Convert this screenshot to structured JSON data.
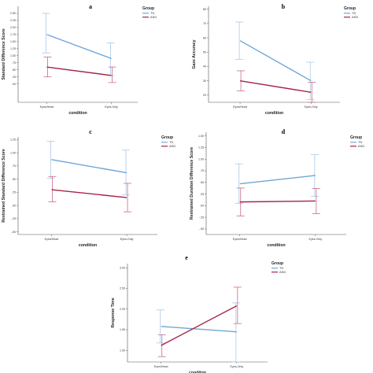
{
  "colors": {
    "td": "#6ea6d8",
    "asd": "#a3244a",
    "td_err": "#a9c9ea",
    "asd_err": "#c96a85",
    "axis": "#555555"
  },
  "chart_data": [
    {
      "panel": "a",
      "type": "line",
      "xlabel": "condition",
      "ylabel": "Standard Difference Score",
      "categories": [
        "Eyes/Head",
        "Eyes-Only"
      ],
      "ylim": [
        -0.65,
        2.75
      ],
      "yticks": [
        ".00",
        ".25",
        ".50",
        ".75",
        "1.00",
        "1.25",
        "1.50",
        "1.75",
        "2.00",
        "2.25",
        "2.50"
      ],
      "yticks_values": [
        0,
        0.25,
        0.5,
        0.75,
        1,
        1.25,
        1.5,
        1.75,
        2,
        2.25,
        2.5
      ],
      "legend": {
        "title": "Group",
        "entries": [
          "TD",
          "ASD"
        ]
      },
      "series": [
        {
          "name": "TD",
          "values": [
            1.75,
            0.9
          ],
          "lower": [
            1.1,
            0.3
          ],
          "upper": [
            2.5,
            1.45
          ]
        },
        {
          "name": "ASD",
          "values": [
            0.6,
            0.3
          ],
          "lower": [
            0.25,
            0.05
          ],
          "upper": [
            0.95,
            0.6
          ]
        }
      ]
    },
    {
      "panel": "b",
      "type": "line",
      "xlabel": "condition",
      "ylabel": "Gaze Accuracy",
      "categories": [
        "Eyes/Head",
        "Eyes-Only"
      ],
      "ylim": [
        15,
        82
      ],
      "yticks": [
        "20",
        "30",
        "40",
        "50",
        "60",
        "70",
        "80"
      ],
      "yticks_values": [
        20,
        30,
        40,
        50,
        60,
        70,
        80
      ],
      "legend": {
        "title": "Group",
        "entries": [
          "TD",
          "ASD"
        ]
      },
      "series": [
        {
          "name": "TD",
          "values": [
            58,
            30
          ],
          "lower": [
            45,
            17
          ],
          "upper": [
            71,
            43
          ]
        },
        {
          "name": "ASD",
          "values": [
            30,
            22
          ],
          "lower": [
            23,
            15
          ],
          "upper": [
            37,
            29
          ]
        }
      ]
    },
    {
      "panel": "c",
      "type": "line",
      "xlabel": "condition",
      "ylabel": "Restrained Standard Difference Score",
      "categories": [
        "Eyes/Head",
        "Eyes-Only"
      ],
      "ylim": [
        -0.55,
        1.3
      ],
      "yticks": [
        "-.50",
        "-.25",
        ".00",
        ".25",
        ".50",
        ".75",
        "1.00",
        "1.25"
      ],
      "yticks_values": [
        -0.5,
        -0.25,
        0,
        0.25,
        0.5,
        0.75,
        1,
        1.25
      ],
      "legend": {
        "title": "Group",
        "entries": [
          "TD",
          "ASD"
        ]
      },
      "series": [
        {
          "name": "TD",
          "values": [
            0.87,
            0.62
          ],
          "lower": [
            0.52,
            0.2
          ],
          "upper": [
            1.22,
            1.05
          ]
        },
        {
          "name": "ASD",
          "values": [
            0.3,
            0.15
          ],
          "lower": [
            0.07,
            -0.12
          ],
          "upper": [
            0.55,
            0.42
          ]
        }
      ]
    },
    {
      "panel": "d",
      "type": "line",
      "xlabel": "condition",
      "ylabel": "Restrained Duration Difference Score",
      "categories": [
        "Eyes/Head",
        "Eyes-Only"
      ],
      "ylim": [
        -0.62,
        1.58
      ],
      "yticks": [
        "-.50",
        "-.25",
        ".00",
        ".25",
        ".50",
        ".75",
        "1.00",
        "1.25",
        "1.50"
      ],
      "yticks_values": [
        -0.5,
        -0.25,
        0,
        0.25,
        0.5,
        0.75,
        1,
        1.25,
        1.5
      ],
      "legend": {
        "title": "Group",
        "entries": [
          "TD",
          "ASD"
        ]
      },
      "series": [
        {
          "name": "TD",
          "values": [
            0.47,
            0.65
          ],
          "lower": [
            0.05,
            0.2
          ],
          "upper": [
            0.9,
            1.1
          ]
        },
        {
          "name": "ASD",
          "values": [
            0.08,
            0.1
          ],
          "lower": [
            -0.22,
            -0.17
          ],
          "upper": [
            0.38,
            0.37
          ]
        }
      ]
    },
    {
      "panel": "e",
      "type": "line",
      "xlabel": "conditon",
      "ylabel": "Response Time",
      "categories": [
        "Eyes/Head",
        "Eyes-Only"
      ],
      "ylim": [
        0.72,
        3.1
      ],
      "yticks": [
        "1.00",
        "1.50",
        "2.00",
        "2.50",
        "3.00"
      ],
      "yticks_values": [
        1,
        1.5,
        2,
        2.5,
        3
      ],
      "legend": {
        "title": "Group",
        "entries": [
          "TD",
          "ASD"
        ]
      },
      "series": [
        {
          "name": "TD",
          "values": [
            1.58,
            1.45
          ],
          "lower": [
            1.18,
            0.72
          ],
          "upper": [
            1.98,
            2.15
          ]
        },
        {
          "name": "ASD",
          "values": [
            1.12,
            2.08
          ],
          "lower": [
            0.85,
            1.65
          ],
          "upper": [
            1.38,
            2.53
          ]
        }
      ]
    }
  ]
}
